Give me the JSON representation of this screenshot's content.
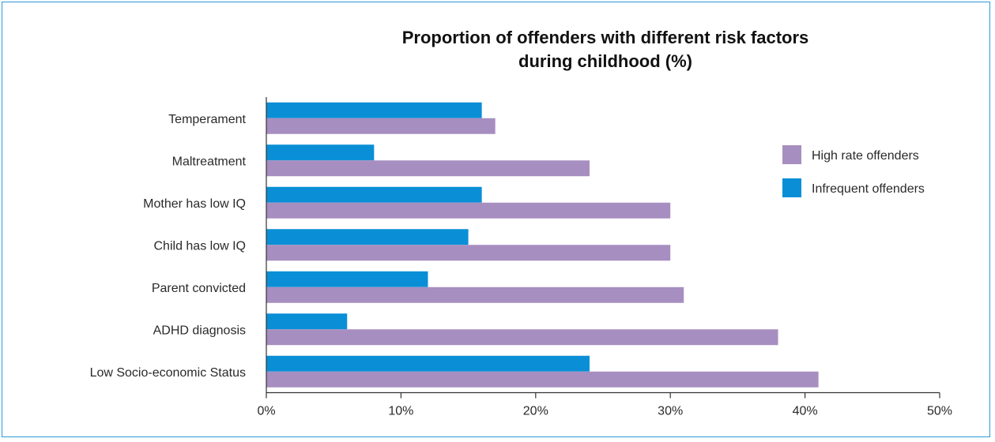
{
  "chart_data": {
    "type": "bar",
    "orientation": "horizontal",
    "title": "Proportion of offenders with different risk factors during childhood (%)",
    "title_lines": [
      "Proportion of offenders with different risk factors",
      "during childhood (%)"
    ],
    "categories": [
      "Temperament",
      "Maltreatment",
      "Mother has low IQ",
      "Child has low IQ",
      "Parent convicted",
      "ADHD diagnosis",
      "Low Socio-economic Status"
    ],
    "series": [
      {
        "name": "Infrequent offenders",
        "color": "#0a8fd6",
        "values": [
          16,
          8,
          16,
          15,
          12,
          6,
          24
        ]
      },
      {
        "name": "High rate offenders",
        "color": "#a78ec0",
        "values": [
          17,
          24,
          30,
          30,
          31,
          38,
          41
        ]
      }
    ],
    "legend_order": [
      "High rate offenders",
      "Infrequent offenders"
    ],
    "legend_position": "right",
    "xlim": [
      0,
      50
    ],
    "xticks": [
      0,
      10,
      20,
      30,
      40,
      50
    ],
    "xtick_labels": [
      "0%",
      "10%",
      "20%",
      "30%",
      "40%",
      "50%"
    ],
    "xlabel": "",
    "ylabel": "",
    "grid": false
  },
  "frame_color": "#2b9bd6",
  "axis_color": "#333333"
}
